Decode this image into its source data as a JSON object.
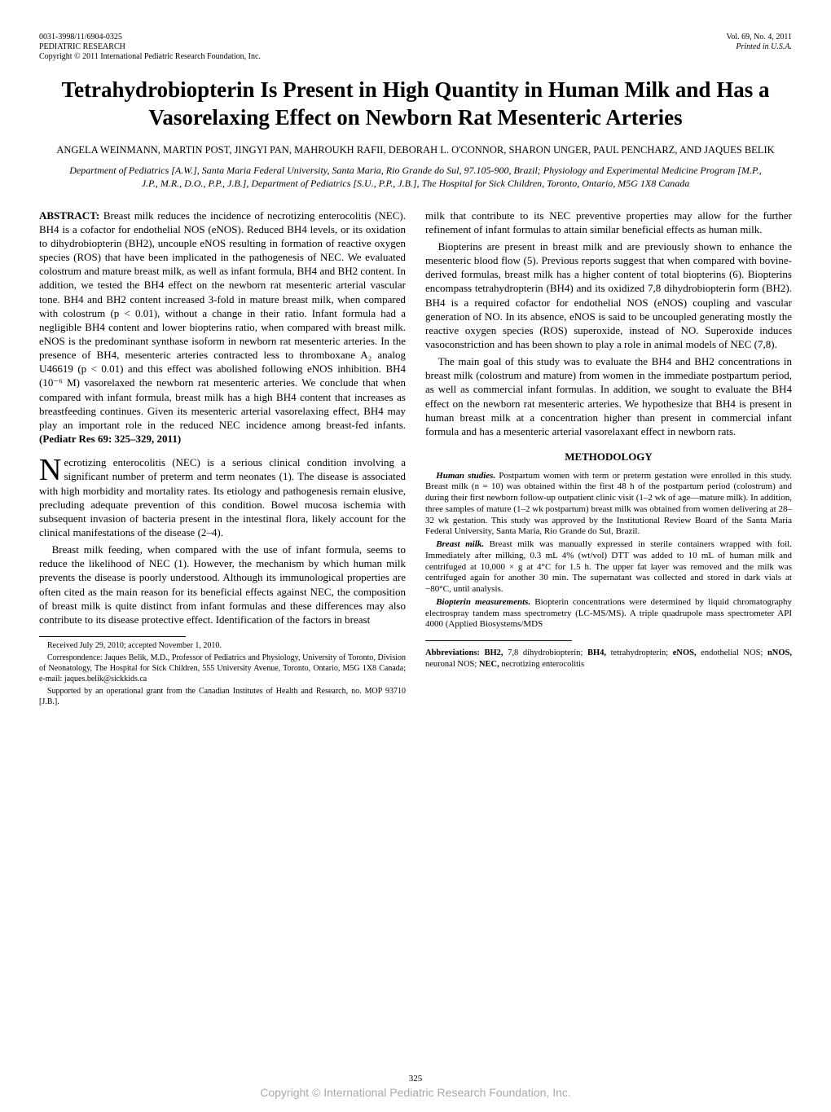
{
  "header": {
    "left_line1": "0031-3998/11/6904-0325",
    "left_line2": "PEDIATRIC RESEARCH",
    "left_line3": "Copyright © 2011 International Pediatric Research Foundation, Inc.",
    "right_line1": "Vol. 69, No. 4, 2011",
    "right_line2": "Printed in U.S.A."
  },
  "title": "Tetrahydrobiopterin Is Present in High Quantity in Human Milk and Has a Vasorelaxing Effect on Newborn Rat Mesenteric Arteries",
  "authors": "ANGELA WEINMANN, MARTIN POST, JINGYI PAN, MAHROUKH RAFII, DEBORAH L. O'CONNOR, SHARON UNGER, PAUL PENCHARZ, AND JAQUES BELIK",
  "affiliations": "Department of Pediatrics [A.W.], Santa Maria Federal University, Santa Maria, Rio Grande do Sul, 97.105-900, Brazil; Physiology and Experimental Medicine Program [M.P., J.P., M.R., D.O., P.P., J.B.], Department of Pediatrics [S.U., P.P., J.B.], The Hospital for Sick Children, Toronto, Ontario, M5G 1X8 Canada",
  "abstract": {
    "label": "ABSTRACT:",
    "text": " Breast milk reduces the incidence of necrotizing enterocolitis (NEC). BH4 is a cofactor for endothelial NOS (eNOS). Reduced BH4 levels, or its oxidation to dihydrobiopterin (BH2), uncouple eNOS resulting in formation of reactive oxygen species (ROS) that have been implicated in the pathogenesis of NEC. We evaluated colostrum and mature breast milk, as well as infant formula, BH4 and BH2 content. In addition, we tested the BH4 effect on the newborn rat mesenteric arterial vascular tone. BH4 and BH2 content increased 3-fold in mature breast milk, when compared with colostrum (p < 0.01), without a change in their ratio. Infant formula had a negligible BH4 content and lower biopterins ratio, when compared with breast milk. eNOS is the predominant synthase isoform in newborn rat mesenteric arteries. In the presence of BH4, mesenteric arteries contracted less to thromboxane A₂ analog U46619 (p < 0.01) and this effect was abolished following eNOS inhibition. BH4 (10⁻⁶ M) vasorelaxed the newborn rat mesenteric arteries. We conclude that when compared with infant formula, breast milk has a high BH4 content that increases as breastfeeding continues. Given its mesenteric arterial vasorelaxing effect, BH4 may play an important role in the reduced NEC incidence among breast-fed infants. ",
    "ref": "(Pediatr Res 69: 325–329, 2011)"
  },
  "intro": {
    "dropcap": "N",
    "p1_rest": "ecrotizing enterocolitis (NEC) is a serious clinical condition involving a significant number of preterm and term neonates (1). The disease is associated with high morbidity and mortality rates. Its etiology and pathogenesis remain elusive, precluding adequate prevention of this condition. Bowel mucosa ischemia with subsequent invasion of bacteria present in the intestinal flora, likely account for the clinical manifestations of the disease (2–4).",
    "p2": "Breast milk feeding, when compared with the use of infant formula, seems to reduce the likelihood of NEC (1). However, the mechanism by which human milk prevents the disease is poorly understood. Although its immunological properties are often cited as the main reason for its beneficial effects against NEC, the composition of breast milk is quite distinct from infant formulas and these differences may also contribute to its disease protective effect. Identification of the factors in breast",
    "p2_cont": "milk that contribute to its NEC preventive properties may allow for the further refinement of infant formulas to attain similar beneficial effects as human milk.",
    "p3": "Biopterins are present in breast milk and are previously shown to enhance the mesenteric blood flow (5). Previous reports suggest that when compared with bovine-derived formulas, breast milk has a higher content of total biopterins (6). Biopterins encompass tetrahydropterin (BH4) and its oxidized 7,8 dihydrobiopterin form (BH2). BH4 is a required cofactor for endothelial NOS (eNOS) coupling and vascular generation of NO. In its absence, eNOS is said to be uncoupled generating mostly the reactive oxygen species (ROS) superoxide, instead of NO. Superoxide induces vasoconstriction and has been shown to play a role in animal models of NEC (7,8).",
    "p4": "The main goal of this study was to evaluate the BH4 and BH2 concentrations in breast milk (colostrum and mature) from women in the immediate postpartum period, as well as commercial infant formulas. In addition, we sought to evaluate the BH4 effect on the newborn rat mesenteric arteries. We hypothesize that BH4 is present in human breast milk at a concentration higher than present in commercial infant formula and has a mesenteric arterial vasorelaxant effect in newborn rats."
  },
  "methods": {
    "heading": "METHODOLOGY",
    "human_head": "Human studies.",
    "human_text": " Postpartum women with term or preterm gestation were enrolled in this study. Breast milk (n = 10) was obtained within the first 48 h of the postpartum period (colostrum) and during their first newborn follow-up outpatient clinic visit (1–2 wk of age—mature milk). In addition, three samples of mature (1–2 wk postpartum) breast milk was obtained from women delivering at 28–32 wk gestation. This study was approved by the Institutional Review Board of the Santa Maria Federal University, Santa Maria, Rio Grande do Sul, Brazil.",
    "breast_head": "Breast milk.",
    "breast_text": " Breast milk was manually expressed in sterile containers wrapped with foil. Immediately after milking, 0.3 mL 4% (wt/vol) DTT was added to 10 mL of human milk and centrifuged at 10,000 × g at 4°C for 1.5 h. The upper fat layer was removed and the milk was centrifuged again for another 30 min. The supernatant was collected and stored in dark vials at −80°C, until analysis.",
    "biopt_head": "Biopterin measurements.",
    "biopt_text": " Biopterin concentrations were determined by liquid chromatography electrospray tandem mass spectrometry (LC-MS/MS). A triple quadrupole mass spectrometer API 4000 (Applied Biosystems/MDS"
  },
  "footnotes": {
    "f1": "Received July 29, 2010; accepted November 1, 2010.",
    "f2": "Correspondence: Jaques Belik, M.D., Professor of Pediatrics and Physiology, University of Toronto, Division of Neonatology, The Hospital for Sick Children, 555 University Avenue, Toronto, Ontario, M5G 1X8 Canada; e-mail: jaques.belik@sickkids.ca",
    "f3": "Supported by an operational grant from the Canadian Institutes of Health and Research, no. MOP 93710 [J.B.]."
  },
  "abbr": "Abbreviations: BH2, 7,8 dihydrobiopterin; BH4, tetrahydropterin; eNOS, endothelial NOS; nNOS, neuronal NOS; NEC, necrotizing enterocolitis",
  "abbr_bold_parts": {
    "label": "Abbreviations:",
    "k1": "BH2,",
    "v1": " 7,8 dihydrobiopterin; ",
    "k2": "BH4,",
    "v2": " tetrahydropterin; ",
    "k3": "eNOS,",
    "v3": " endothelial NOS; ",
    "k4": "nNOS,",
    "v4": " neuronal NOS; ",
    "k5": "NEC,",
    "v5": " necrotizing enterocolitis"
  },
  "page_number": "325",
  "bottom_copyright": "Copyright © International Pediatric Research Foundation, Inc."
}
